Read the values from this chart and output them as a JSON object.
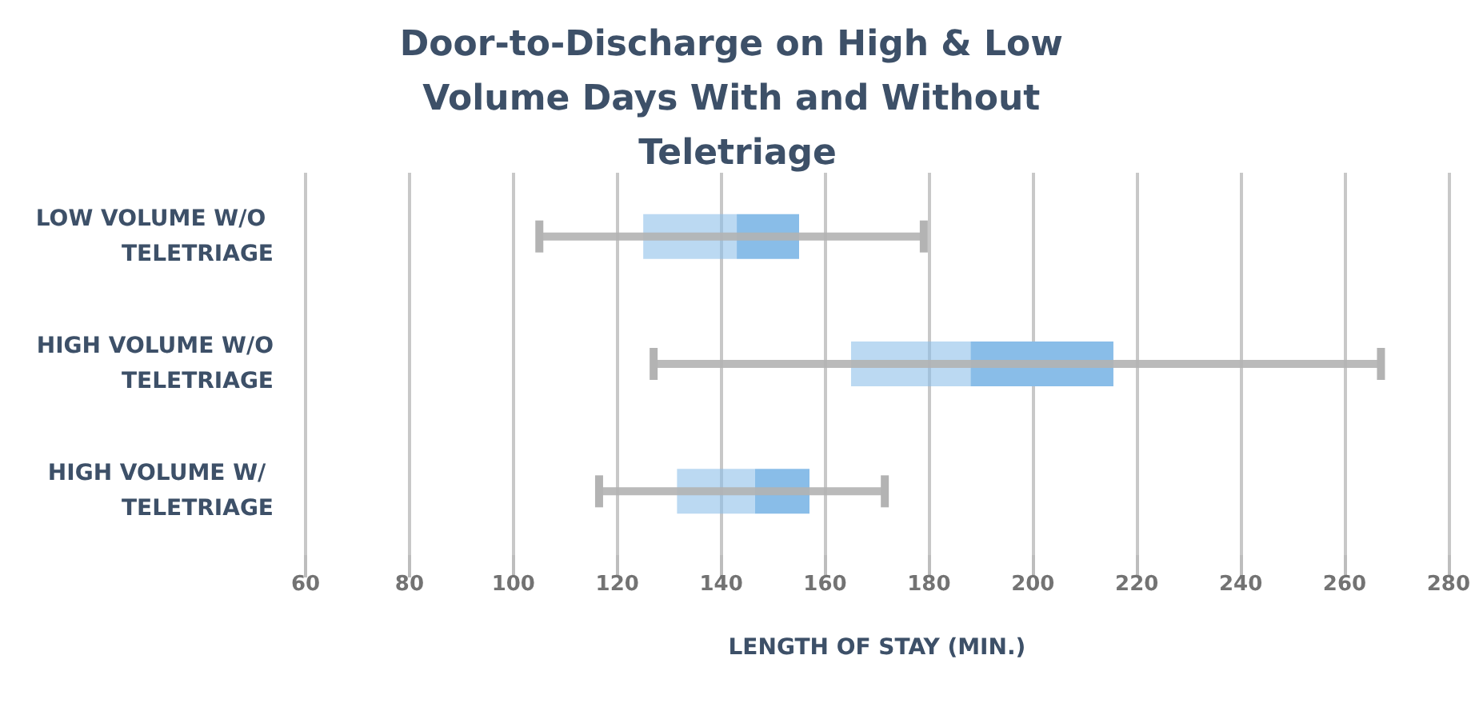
{
  "chart_data": {
    "type": "box",
    "orientation": "horizontal",
    "title": "Door-to-Discharge on High & Low Volume Days With and Without Teletriage",
    "xlabel": "LENGTH OF STAY (MIN.)",
    "categories": [
      "LOW VOLUME W/O TELETRIAGE",
      "HIGH VOLUME W/O TELETRIAGE",
      "HIGH VOLUME W/ TELETRIAGE"
    ],
    "series": [
      {
        "color": "#89bde8",
        "boxes": [
          {
            "low": 105,
            "q1": 125,
            "median": 143,
            "q3": 155,
            "high": 179
          },
          {
            "low": 127,
            "q1": 165,
            "median": 188,
            "q3": 215.5,
            "high": 267
          },
          {
            "low": 116.5,
            "q1": 131.5,
            "median": 146.5,
            "q3": 157,
            "high": 171.5
          }
        ]
      }
    ],
    "xlim": [
      60,
      280
    ],
    "xticks": [
      60,
      80,
      100,
      120,
      140,
      160,
      180,
      200,
      220,
      240,
      260,
      280
    ],
    "grid": "x"
  }
}
